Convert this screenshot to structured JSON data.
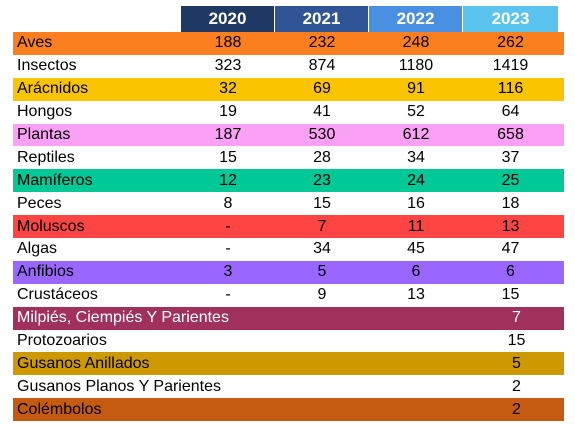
{
  "years": [
    "2020",
    "2021",
    "2022",
    "2023"
  ],
  "header_colors": [
    "#203864",
    "#2f5597",
    "#4a90e2",
    "#5bc4ee"
  ],
  "rows": [
    {
      "name": "Aves",
      "values": [
        "188",
        "232",
        "248",
        "262"
      ],
      "color": "#fb7f1f"
    },
    {
      "name": "Insectos",
      "values": [
        "323",
        "874",
        "1180",
        "1419"
      ],
      "color": "#ffffff"
    },
    {
      "name": "Arácnidos",
      "values": [
        "32",
        "69",
        "91",
        "116"
      ],
      "color": "#fbc400"
    },
    {
      "name": "Hongos",
      "values": [
        "19",
        "41",
        "52",
        "64"
      ],
      "color": "#ffffff"
    },
    {
      "name": "Plantas",
      "values": [
        "187",
        "530",
        "612",
        "658"
      ],
      "color": "#fba1f5"
    },
    {
      "name": "Reptiles",
      "values": [
        "15",
        "28",
        "34",
        "37"
      ],
      "color": "#ffffff"
    },
    {
      "name": "Mamíferos",
      "values": [
        "12",
        "23",
        "24",
        "25"
      ],
      "color": "#00c896"
    },
    {
      "name": "Peces",
      "values": [
        "8",
        "15",
        "16",
        "18"
      ],
      "color": "#ffffff"
    },
    {
      "name": "Moluscos",
      "values": [
        "-",
        "7",
        "11",
        "13"
      ],
      "color": "#ff4444"
    },
    {
      "name": "Algas",
      "values": [
        "-",
        "34",
        "45",
        "47"
      ],
      "color": "#ffffff"
    },
    {
      "name": "Anfibios",
      "values": [
        "3",
        "5",
        "6",
        "6"
      ],
      "color": "#9966ff"
    },
    {
      "name": "Crustáceos",
      "values": [
        "-",
        "9",
        "13",
        "15"
      ],
      "color": "#ffffff"
    },
    {
      "name": "Milpiés, Ciempiés Y Parientes",
      "values": [
        "7"
      ],
      "color": "#a0305c",
      "text_color": "#ffffff"
    },
    {
      "name": "Protozoarios",
      "values": [
        "15"
      ],
      "color": "#ffffff"
    },
    {
      "name": "Gusanos Anillados",
      "values": [
        "5"
      ],
      "color": "#cc9900"
    },
    {
      "name": "Gusanos Planos Y Parientes",
      "values": [
        "2"
      ],
      "color": "#ffffff"
    },
    {
      "name": "Colémbolos",
      "values": [
        "2"
      ],
      "color": "#c55a11"
    }
  ]
}
